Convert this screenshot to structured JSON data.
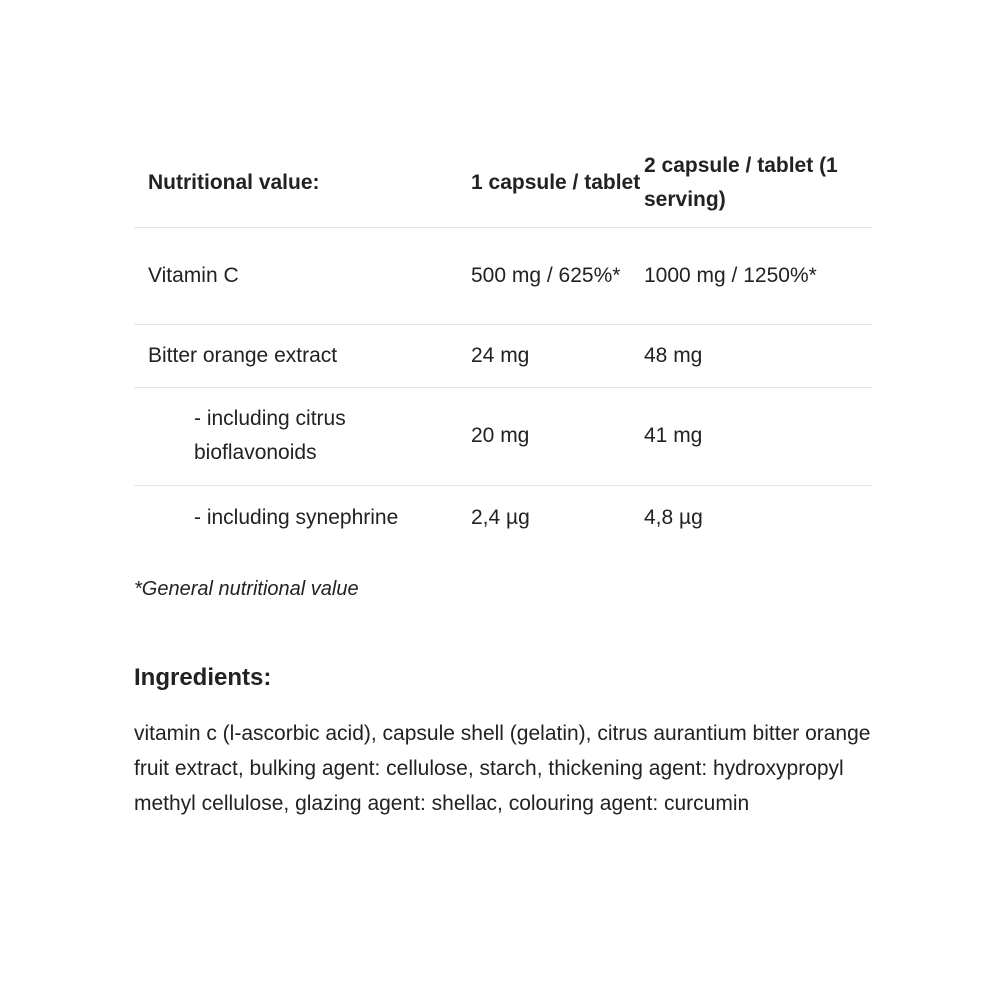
{
  "table": {
    "headers": [
      "Nutritional value:",
      "1 capsule / tablet",
      "2 capsule / tablet (1 serving)"
    ],
    "rows": [
      {
        "name": "Vitamin C",
        "one": "500 mg / 625%*",
        "two": "1000 mg / 1250%*"
      },
      {
        "name": "Bitter orange extract",
        "one": "24 mg",
        "two": "48 mg"
      },
      {
        "name": "- including citrus bioflavonoids",
        "one": "20 mg",
        "two": "41 mg"
      },
      {
        "name": "- including synephrine",
        "one": "2,4 µg",
        "two": "4,8 µg"
      }
    ]
  },
  "footnote": "*General nutritional value",
  "ingredients": {
    "heading": "Ingredients:",
    "text": "vitamin c (l-ascorbic acid), capsule shell (gelatin), citrus aurantium bitter orange fruit extract, bulking agent: cellulose, starch, thickening agent: hydroxypropyl methyl cellulose, glazing agent: shellac, colouring agent: curcumin"
  }
}
